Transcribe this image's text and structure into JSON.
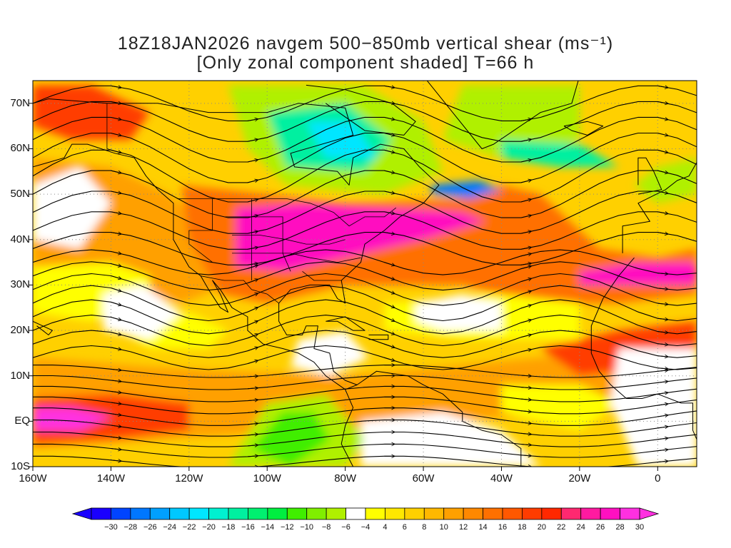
{
  "title_line1": "18Z18JAN2026 navgem 500−850mb vertical shear (ms⁻¹)",
  "title_line2": "[Only zonal component shaded] T=66 h",
  "latitude_labels": [
    "70N",
    "60N",
    "50N",
    "40N",
    "30N",
    "20N",
    "10N",
    "EQ",
    "10S"
  ],
  "longitude_labels": [
    "160W",
    "140W",
    "120W",
    "100W",
    "80W",
    "60W",
    "40W",
    "20W",
    "0"
  ],
  "colorbar": {
    "labels": [
      "−30",
      "−28",
      "−26",
      "−24",
      "−22",
      "−20",
      "−18",
      "−16",
      "−14",
      "−12",
      "−10",
      "−8",
      "−6",
      "−4",
      "4",
      "6",
      "8",
      "10",
      "12",
      "14",
      "16",
      "18",
      "20",
      "22",
      "24",
      "26",
      "28",
      "30"
    ],
    "colors": [
      "#1a00ff",
      "#0044ff",
      "#0077ff",
      "#00a0ff",
      "#00c8ff",
      "#00e6ff",
      "#00f0d0",
      "#00f0a0",
      "#00f070",
      "#00ee40",
      "#40ee00",
      "#80ee00",
      "#b0f000",
      "#ffffff",
      "#ffff00",
      "#ffe800",
      "#ffd000",
      "#ffb800",
      "#ffa000",
      "#ff8800",
      "#ff7000",
      "#ff5800",
      "#ff3c00",
      "#ff2800",
      "#ff2870",
      "#ff1aa0",
      "#ff10c0",
      "#ff30e0"
    ]
  },
  "map": {
    "extent_lon": [
      -160,
      10
    ],
    "extent_lat": [
      -10,
      75
    ],
    "colors": {
      "white": "#ffffff",
      "yellow": "#ffff00",
      "gold": "#ffd000",
      "orange": "#ffa000",
      "dark_orange": "#ff7000",
      "red": "#ff3c00",
      "magenta": "#ff10c0",
      "pink": "#ff30e0",
      "light_green": "#b0f000",
      "green": "#40ee00",
      "mint": "#00f0a0",
      "cyan": "#00e6ff",
      "blue": "#0077ff",
      "coast": "#000000"
    }
  }
}
